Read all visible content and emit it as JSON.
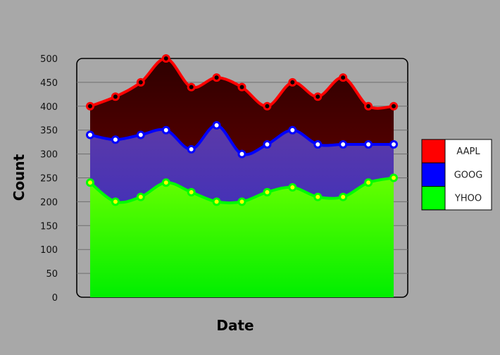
{
  "chart_data": {
    "type": "area",
    "title": "",
    "xlabel": "Date",
    "ylabel": "Count",
    "ylim": [
      0,
      500
    ],
    "yticks": [
      0,
      50,
      100,
      150,
      200,
      250,
      300,
      350,
      400,
      450,
      500
    ],
    "grid": true,
    "legend_position": "right",
    "x": [
      1,
      2,
      3,
      4,
      5,
      6,
      7,
      8,
      9,
      10,
      11,
      12,
      13
    ],
    "series": [
      {
        "name": "AAPL",
        "color": "#ff0000",
        "values": [
          400,
          420,
          450,
          500,
          440,
          460,
          440,
          400,
          450,
          420,
          460,
          400,
          400
        ]
      },
      {
        "name": "GOOG",
        "color": "#0000ff",
        "values": [
          340,
          330,
          340,
          350,
          310,
          360,
          300,
          320,
          350,
          320,
          320,
          320,
          320
        ]
      },
      {
        "name": "YHOO",
        "color": "#00ff00",
        "values": [
          240,
          200,
          210,
          240,
          220,
          200,
          200,
          220,
          230,
          210,
          210,
          240,
          250
        ]
      }
    ]
  }
}
